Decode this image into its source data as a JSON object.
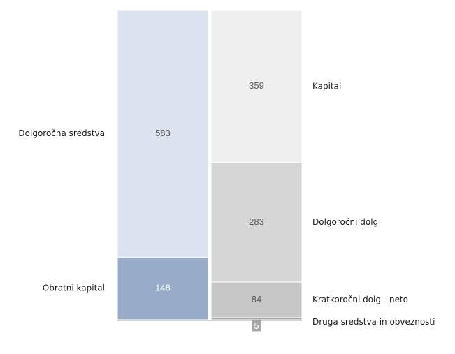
{
  "chart_data": {
    "type": "stacked-bar",
    "categories": [
      null,
      null
    ],
    "series": [
      {
        "name": "Obratni kapital",
        "color": "#98acca",
        "values": [
          148,
          null
        ]
      },
      {
        "name": "Dolgoročna sredstva",
        "color": "#dce3ef",
        "values": [
          583,
          null
        ]
      },
      {
        "name": "Druga sredstva in obveznosti",
        "color": "#a6a6a6",
        "values": [
          null,
          5
        ]
      },
      {
        "name": "Kratkoročni dolg - neto",
        "color": "#c6c6c6",
        "values": [
          null,
          84
        ]
      },
      {
        "name": "Dolgoročni dolg",
        "color": "#d6d6d7",
        "values": [
          null,
          283
        ]
      },
      {
        "name": "Kapital",
        "color": "#efefef",
        "values": [
          null,
          359
        ]
      }
    ],
    "ylim": [
      0,
      731
    ]
  }
}
